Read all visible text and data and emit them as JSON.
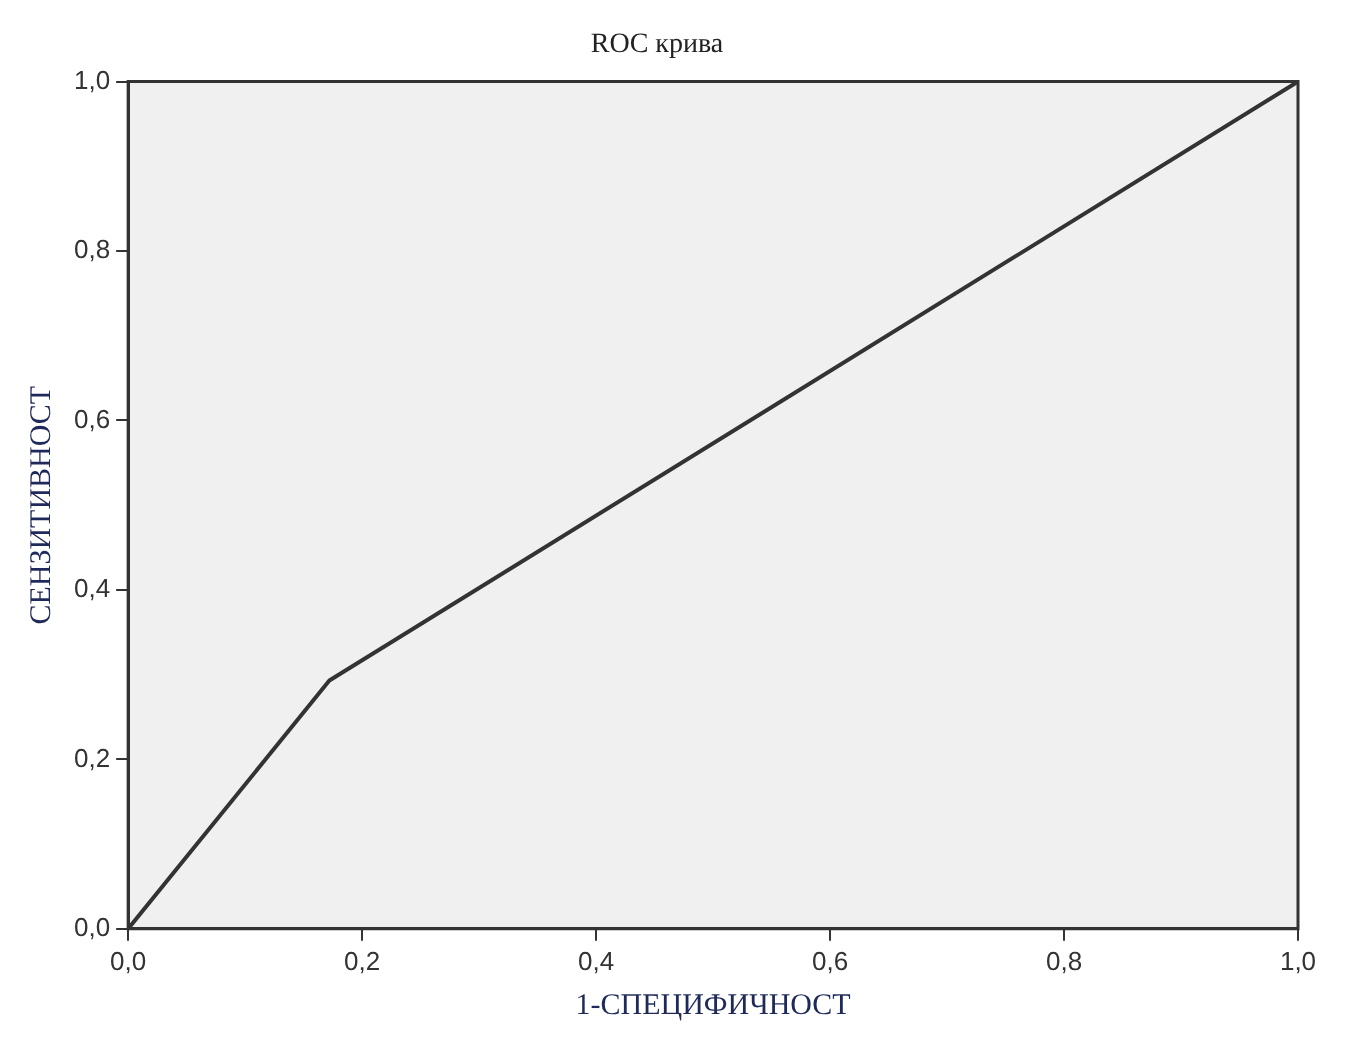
{
  "chart_data": {
    "type": "line",
    "title": "ROC крива",
    "xlabel": "1-СПЕЦИФИЧНОСТ",
    "ylabel": "СЕНЗИТИВНОСТ",
    "x": [
      0,
      0.172,
      1
    ],
    "series": [
      {
        "color": "#333333",
        "values": [
          0,
          0.293,
          1
        ]
      }
    ],
    "xlim": [
      0,
      1
    ],
    "ylim": [
      0,
      1
    ],
    "xticks": [
      {
        "value": 0,
        "label": "0,0"
      },
      {
        "value": 0.2,
        "label": "0,2"
      },
      {
        "value": 0.4,
        "label": "0,4"
      },
      {
        "value": 0.6,
        "label": "0,6"
      },
      {
        "value": 0.8,
        "label": "0,8"
      },
      {
        "value": 1,
        "label": "1,0"
      }
    ],
    "yticks": [
      {
        "value": 0,
        "label": "0,0"
      },
      {
        "value": 0.2,
        "label": "0,2"
      },
      {
        "value": 0.4,
        "label": "0,4"
      },
      {
        "value": 0.6,
        "label": "0,6"
      },
      {
        "value": 0.8,
        "label": "0,8"
      },
      {
        "value": 1,
        "label": "1,0"
      }
    ],
    "grid": false,
    "legend": false,
    "marker": "none",
    "line_style": "solid"
  }
}
